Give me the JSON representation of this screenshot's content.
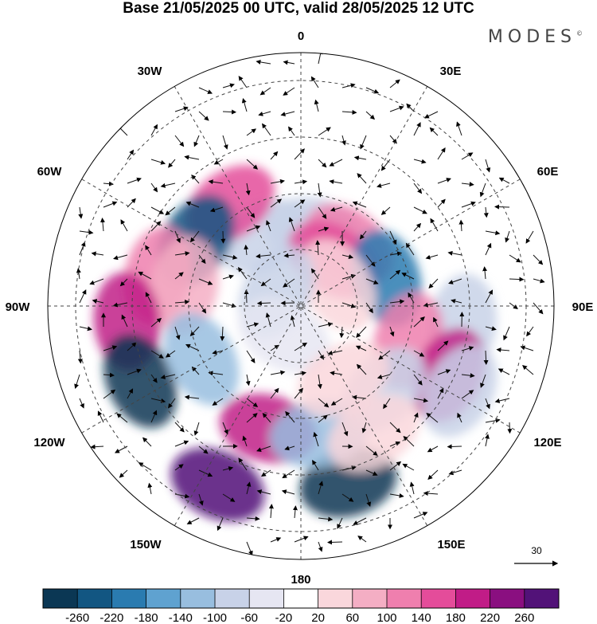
{
  "title": "Base 21/05/2025 00 UTC, valid 28/05/2025 12 UTC",
  "logo": "MODES",
  "logo_mark": "©",
  "longitude_labels": {
    "top": "0",
    "top_left": "30W",
    "top_right": "30E",
    "upper_left": "60W",
    "upper_right": "60E",
    "left": "90W",
    "right": "90E",
    "lower_left": "120W",
    "lower_right": "120E",
    "bottom_left": "150W",
    "bottom_right": "150E",
    "bottom": "180"
  },
  "wind_reference": {
    "value": "30"
  },
  "colorbar": {
    "colors": [
      "#0b3754",
      "#125682",
      "#2a7bb0",
      "#5fa2d0",
      "#98bedf",
      "#c8d2e8",
      "#e6e6f2",
      "#ffffff",
      "#fad7dc",
      "#f4aec4",
      "#ef7fae",
      "#e44c9a",
      "#c11c87",
      "#8a0f80",
      "#521278"
    ],
    "labels": [
      "-260",
      "-220",
      "-180",
      "-140",
      "-100",
      "-60",
      "-20",
      "20",
      "60",
      "100",
      "140",
      "180",
      "220",
      "260"
    ]
  },
  "anomaly_cells": [
    {
      "lat": 62,
      "lon": -28,
      "level": 5
    },
    {
      "lat": 63,
      "lon": 10,
      "level": 5
    },
    {
      "lat": 62,
      "lon": 38,
      "level": 10
    },
    {
      "lat": 70,
      "lon": 35,
      "level": 11
    },
    {
      "lat": 46,
      "lon": -35,
      "level": 11
    },
    {
      "lat": 46,
      "lon": -58,
      "level": 1
    },
    {
      "lat": 38,
      "lon": -78,
      "level": 10
    },
    {
      "lat": 48,
      "lon": -80,
      "level": 9
    },
    {
      "lat": 28,
      "lon": -95,
      "level": 12
    },
    {
      "lat": 27,
      "lon": -115,
      "level": 0
    },
    {
      "lat": 50,
      "lon": -118,
      "level": 4
    },
    {
      "lat": 20,
      "lon": -155,
      "level": 14
    },
    {
      "lat": 45,
      "lon": -165,
      "level": 12
    },
    {
      "lat": 25,
      "lon": 165,
      "level": 0
    },
    {
      "lat": 44,
      "lon": 172,
      "level": 4
    },
    {
      "lat": 58,
      "lon": 72,
      "level": 2
    },
    {
      "lat": 32,
      "lon": 96,
      "level": 5
    },
    {
      "lat": 50,
      "lon": 108,
      "level": 10
    },
    {
      "lat": 32,
      "lon": 115,
      "level": 12
    },
    {
      "lat": 48,
      "lon": 135,
      "level": 5
    },
    {
      "lat": 26,
      "lon": 118,
      "level": 5
    },
    {
      "lat": 75,
      "lon": 60,
      "level": 8
    },
    {
      "lat": 80,
      "lon": -60,
      "level": 5
    },
    {
      "lat": 78,
      "lon": -150,
      "level": 6
    },
    {
      "lat": 60,
      "lon": 150,
      "level": 8
    },
    {
      "lat": 38,
      "lon": 150,
      "level": 8
    }
  ]
}
